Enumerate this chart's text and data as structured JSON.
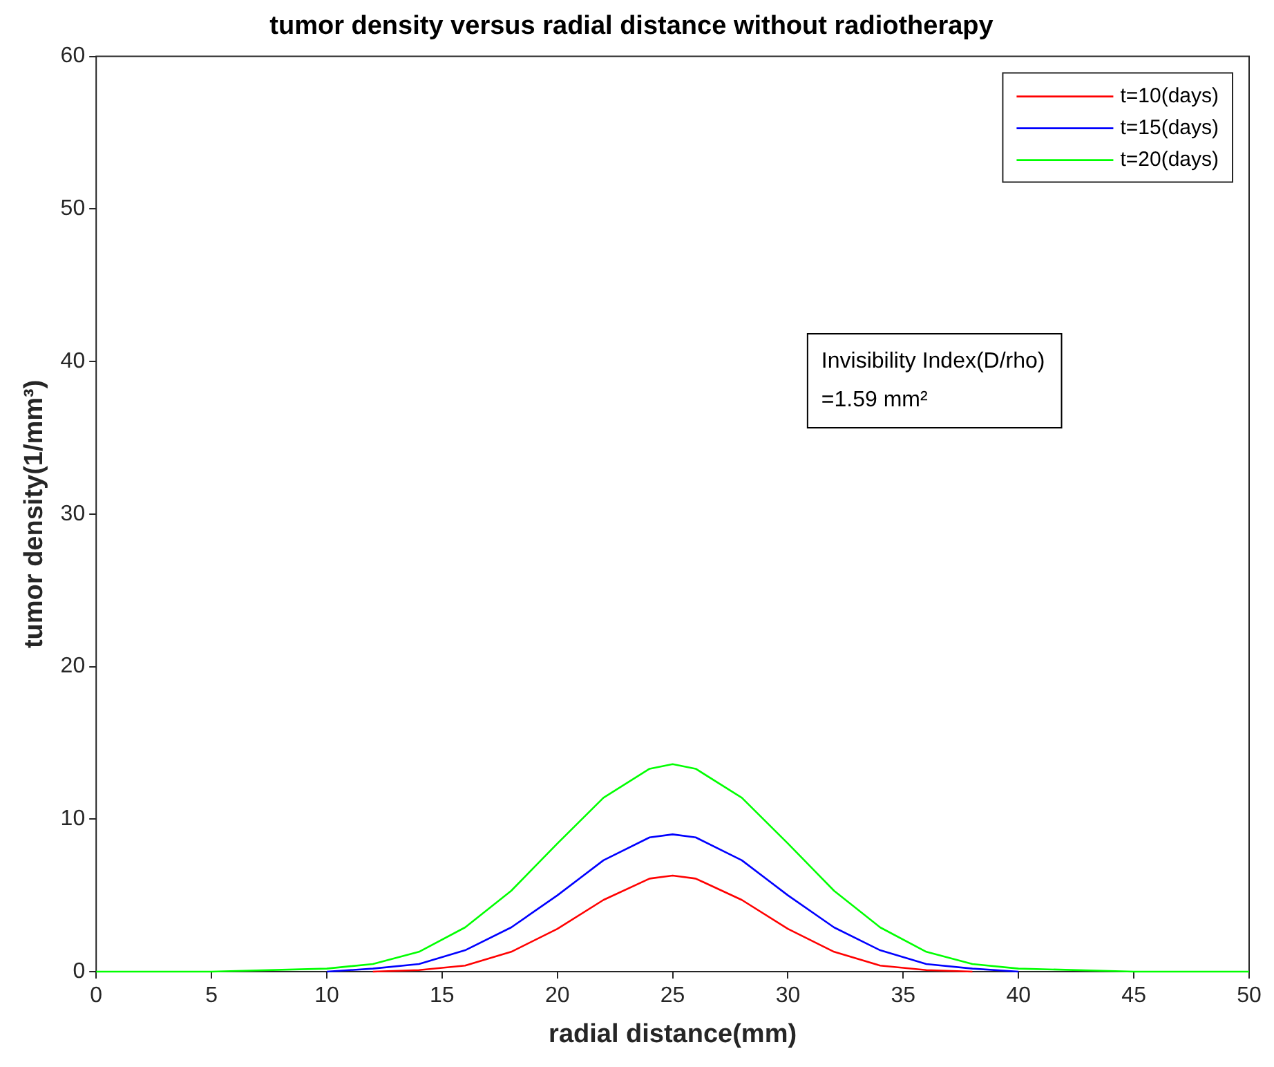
{
  "chart_data": {
    "type": "line",
    "title": "tumor density versus radial distance without radiotherapy",
    "xlabel": "radial distance(mm)",
    "ylabel": "tumor density(1/mm³)",
    "x": [
      0,
      5,
      10,
      12,
      14,
      16,
      18,
      20,
      22,
      24,
      25,
      26,
      28,
      30,
      32,
      34,
      36,
      38,
      40,
      45,
      50
    ],
    "series": [
      {
        "name": "t=10(days)",
        "color": "#ff0000",
        "values": [
          null,
          null,
          null,
          0,
          0.1,
          0.4,
          1.3,
          2.8,
          4.7,
          6.1,
          6.3,
          6.1,
          4.7,
          2.8,
          1.3,
          0.4,
          0.1,
          0,
          null,
          null,
          null
        ]
      },
      {
        "name": "t=15(days)",
        "color": "#0000ff",
        "values": [
          null,
          null,
          0,
          0.2,
          0.5,
          1.4,
          2.9,
          5.0,
          7.3,
          8.8,
          9.0,
          8.8,
          7.3,
          5.0,
          2.9,
          1.4,
          0.5,
          0.2,
          0,
          null,
          null
        ]
      },
      {
        "name": "t=20(days)",
        "color": "#00ff00",
        "values": [
          0,
          0,
          0.2,
          0.5,
          1.3,
          2.9,
          5.3,
          8.4,
          11.4,
          13.3,
          13.6,
          13.3,
          11.4,
          8.4,
          5.3,
          2.9,
          1.3,
          0.5,
          0.2,
          0,
          0
        ]
      }
    ],
    "xlim": [
      0,
      50
    ],
    "xticks": [
      0,
      5,
      10,
      15,
      20,
      25,
      30,
      35,
      40,
      45,
      50
    ],
    "ylim": [
      0,
      60
    ],
    "yticks": [
      0,
      10,
      20,
      30,
      40,
      50,
      60
    ],
    "grid": false,
    "legend": "top right",
    "marker": "none",
    "line_style": "solid",
    "annotations": [
      "Invisibility Index(D/rho)\n=1.59 mm²"
    ]
  }
}
